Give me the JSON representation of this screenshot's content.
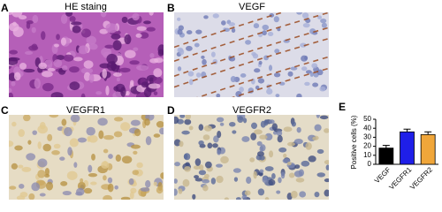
{
  "panels": [
    {
      "label": "A",
      "title": "HE staing"
    },
    {
      "label": "B",
      "title": "VEGF"
    },
    {
      "label": "C",
      "title": "VEGFR1"
    },
    {
      "label": "D",
      "title": "VEGFR2"
    }
  ],
  "chart_data": {
    "type": "bar",
    "panel_label": "E",
    "y_label": "Positive cells (%)",
    "categories": [
      "VEGF",
      "VEGFR1",
      "VEGFR2"
    ],
    "values": [
      18,
      36,
      33
    ],
    "errors": [
      3,
      3,
      3
    ],
    "colors": [
      "#000000",
      "#1f1fe8",
      "#f0a63a"
    ],
    "ylim": [
      0,
      50
    ],
    "yticks": [
      0,
      10,
      20,
      30,
      40,
      50
    ]
  }
}
